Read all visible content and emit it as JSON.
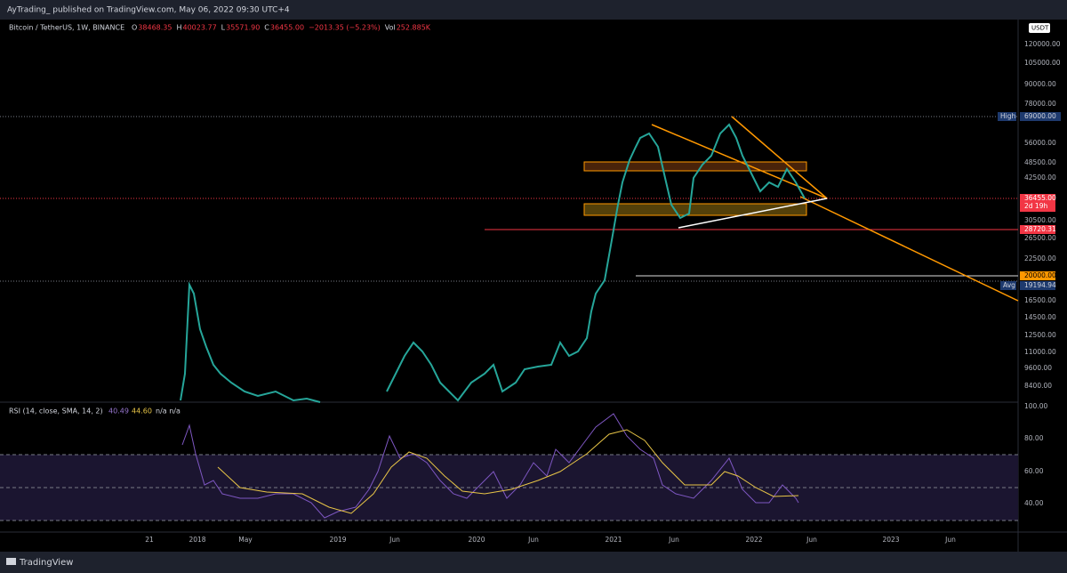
{
  "header": {
    "text": "AyTrading_  published on TradingView.com, May 06, 2022 09:30 UTC+4"
  },
  "legend": {
    "symbol": "Bitcoin / TetherUS, 1W, BINANCE",
    "items": [
      {
        "label": "O",
        "value": "38468.35"
      },
      {
        "label": "H",
        "value": "40023.77"
      },
      {
        "label": "L",
        "value": "35571.90"
      },
      {
        "label": "C",
        "value": "36455.00"
      },
      {
        "label": "",
        "value": "−2013.35 (−5.23%)"
      },
      {
        "label": "Vol",
        "value": "252.885K"
      }
    ]
  },
  "currency": "USDT",
  "price_axis": {
    "labels": [
      "120000.00",
      "105000.00",
      "90000.00",
      "78000.00",
      "56000.00",
      "48500.00",
      "42500.00",
      "30500.00",
      "26500.00",
      "22500.00",
      "16500.00",
      "14500.00",
      "12500.00",
      "11000.00",
      "9600.00",
      "8400.00"
    ],
    "high": {
      "tag": "High",
      "value": "69000.00"
    },
    "last": {
      "value": "36455.00",
      "countdown": "2d 19h"
    },
    "level_red": "28720.31",
    "level_orange": "20000.00",
    "avg": {
      "tag": "Avg",
      "value": "19194.94"
    }
  },
  "rsi": {
    "title": "RSI (14, close, SMA, 14, 2)",
    "value": "40.49",
    "sma": "44.60",
    "extra": "n/a  n/a",
    "axis": [
      "100.00",
      "80.00",
      "60.00",
      "40.00"
    ]
  },
  "time_axis": [
    "21",
    "2018",
    "May",
    "2019",
    "Jun",
    "2020",
    "Jun",
    "2021",
    "Jun",
    "2022",
    "Jun",
    "2023",
    "Jun"
  ],
  "footer": {
    "brand": "TradingView"
  }
}
